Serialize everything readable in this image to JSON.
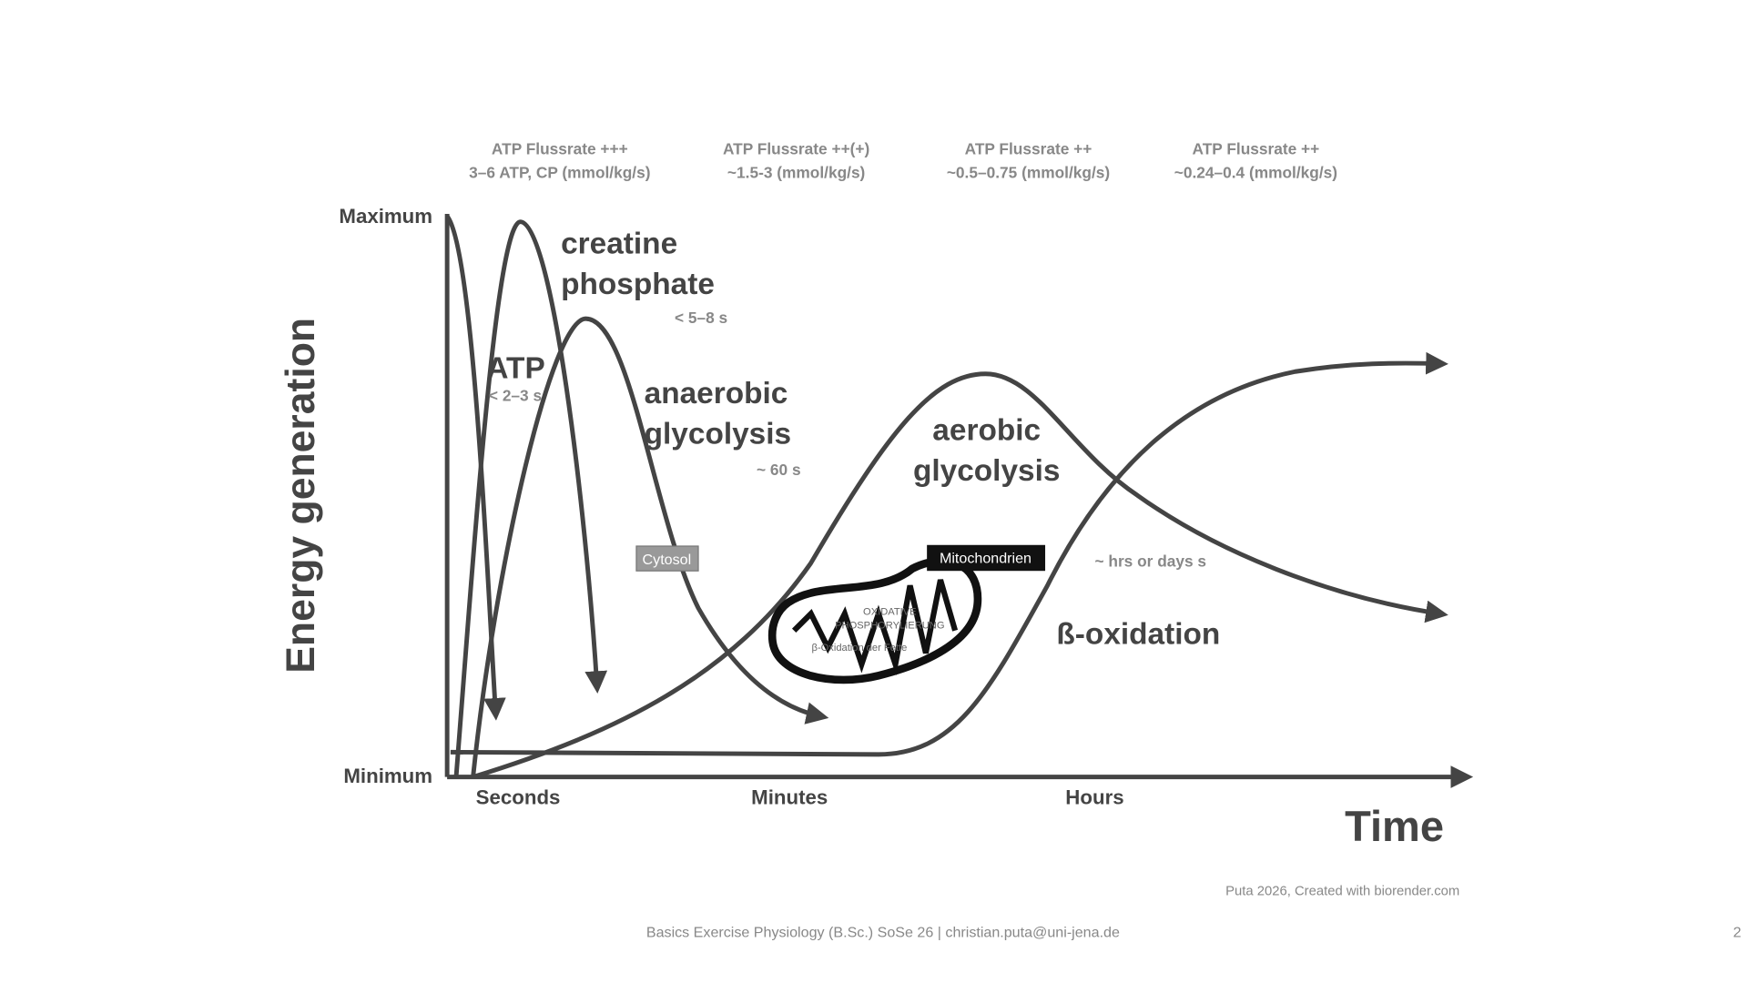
{
  "flux_rates": [
    {
      "line1": "ATP Flussrate +++",
      "line2": "3–6 ATP, CP (mmol/kg/s)"
    },
    {
      "line1": "ATP Flussrate ++(+)",
      "line2": "~1.5-3 (mmol/kg/s)"
    },
    {
      "line1": "ATP Flussrate ++",
      "line2": "~0.5–0.75 (mmol/kg/s)"
    },
    {
      "line1": "ATP Flussrate ++",
      "line2": "~0.24–0.4 (mmol/kg/s)"
    }
  ],
  "y_axis": {
    "title": "Energy generation",
    "max_label": "Maximum",
    "min_label": "Minimum"
  },
  "x_axis": {
    "title": "Time",
    "labels": [
      "Seconds",
      "Minutes",
      "Hours"
    ]
  },
  "curves": [
    {
      "label_lines": [
        "ATP"
      ],
      "duration": "< 2–3 s"
    },
    {
      "label_lines": [
        "creatine",
        "phosphate"
      ],
      "duration": "< 5–8 s"
    },
    {
      "label_lines": [
        "anaerobic",
        "glycolysis"
      ],
      "duration": "~ 60 s"
    },
    {
      "label_lines": [
        "aerobic",
        "glycolysis"
      ]
    },
    {
      "label_lines": [
        "ß-oxidation"
      ],
      "duration": "~ hrs or days s"
    }
  ],
  "compartments": {
    "cytosol": "Cytosol",
    "mitochondria": "Mitochondrien",
    "inner_lines": [
      "OXIDATIVE",
      "PHOSPHORYLIERUNG",
      "β-Oxidation der Fette"
    ]
  },
  "source": "Puta 2026, Created with biorender.com",
  "footer": "Basics Exercise Physiology (B.Sc.) SoSe 26 | christian.puta@uni-jena.de",
  "page_number": "2"
}
